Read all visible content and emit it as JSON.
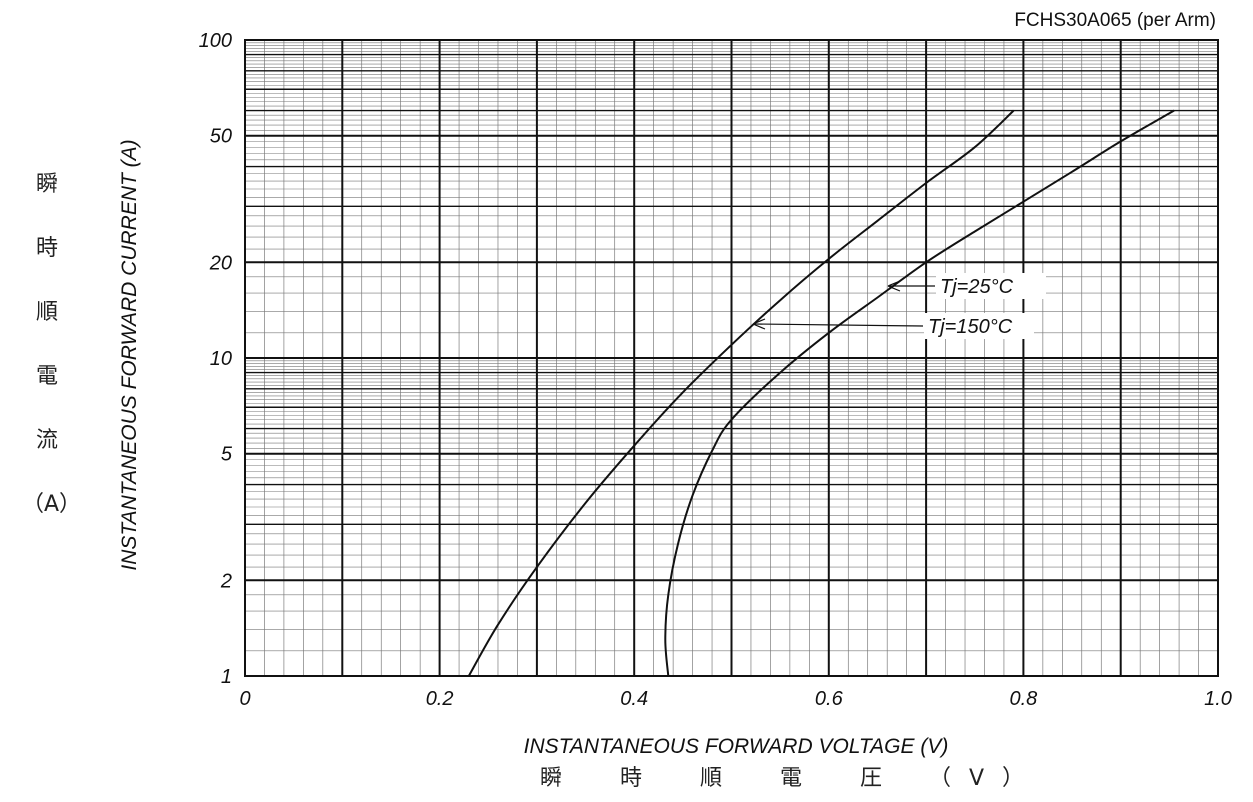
{
  "chart_data": {
    "type": "line",
    "title": "FCHS30A065 (per Arm)",
    "xlabel": "INSTANTANEOUS FORWARD VOLTAGE (V)",
    "ylabel": "INSTANTANEOUS FORWARD CURRENT (A)",
    "xlabel_jp": "瞬　時　順　電　圧　（V）",
    "ylabel_jp": [
      "瞬",
      "時",
      "順",
      "電",
      "流",
      "（A）"
    ],
    "xlim": [
      0,
      1.0
    ],
    "ylim": [
      1,
      100
    ],
    "yscale": "log",
    "grid": true,
    "x_ticks": [
      "0",
      "0.2",
      "0.4",
      "0.6",
      "0.8",
      "1.0"
    ],
    "y_ticks": [
      "1",
      "2",
      "5",
      "10",
      "20",
      "50",
      "100"
    ],
    "series": [
      {
        "name": "Tj=150°C",
        "x": [
          0.23,
          0.26,
          0.3,
          0.35,
          0.4,
          0.45,
          0.5,
          0.55,
          0.6,
          0.65,
          0.7,
          0.75,
          0.79
        ],
        "y": [
          1.0,
          1.45,
          2.2,
          3.5,
          5.3,
          7.8,
          11.0,
          15.2,
          20.5,
          27.0,
          35.5,
          46.0,
          60.0
        ]
      },
      {
        "name": "Tj=25°C",
        "x": [
          0.435,
          0.432,
          0.435,
          0.445,
          0.46,
          0.48,
          0.5,
          0.55,
          0.6,
          0.65,
          0.7,
          0.75,
          0.8,
          0.85,
          0.9,
          0.955
        ],
        "y": [
          1.0,
          1.3,
          1.8,
          2.6,
          3.7,
          5.1,
          6.4,
          9.0,
          12.0,
          15.5,
          20.0,
          25.0,
          31.0,
          38.5,
          48.0,
          60.0
        ]
      }
    ],
    "annotations": [
      "Tj=25°C",
      "Tj=150°C"
    ]
  }
}
